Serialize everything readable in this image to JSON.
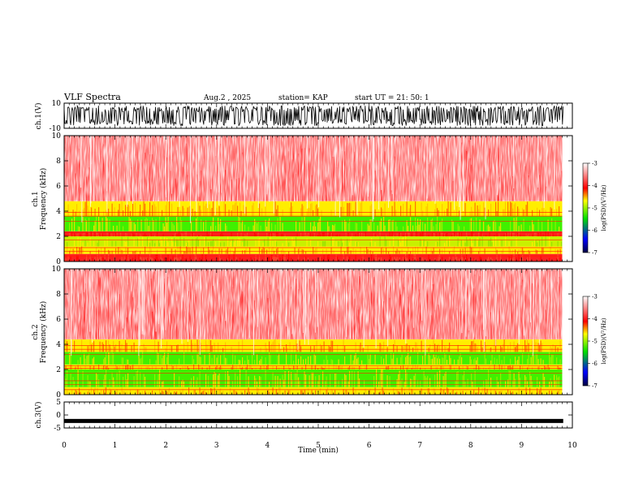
{
  "header": {
    "title": "VLF Spectra",
    "date": "Aug.2  , 2025",
    "station": "station= KAP",
    "start": "start  UT  =   21: 50: 1"
  },
  "chart_data": [
    {
      "type": "line",
      "name": "ch1-waveform",
      "ylabel": "ch.1(V)",
      "ylim": [
        -10,
        10
      ],
      "y_ticks": [
        "10",
        "-10"
      ],
      "xlim": [
        0,
        10
      ],
      "description_values": {
        "amplitude_range": [
          -8,
          8
        ]
      }
    },
    {
      "type": "heatmap",
      "name": "ch1-spectrogram",
      "ylabel": "ch.1\nFrequency  (kHz)",
      "ylabel_lines": [
        "ch.1",
        "Frequency  (kHz)"
      ],
      "ylim": [
        0,
        10
      ],
      "y_ticks": [
        "0",
        "2",
        "4",
        "6",
        "8",
        "10"
      ],
      "xlim": [
        0,
        9.8
      ],
      "bands_khz": [
        {
          "from": 0.0,
          "to": 0.6,
          "level": "red"
        },
        {
          "from": 0.6,
          "to": 1.2,
          "level": "yellow"
        },
        {
          "from": 1.2,
          "to": 2.0,
          "level": "yellow-green"
        },
        {
          "from": 2.0,
          "to": 2.4,
          "level": "red"
        },
        {
          "from": 2.4,
          "to": 3.6,
          "level": "green"
        },
        {
          "from": 3.6,
          "to": 4.8,
          "level": "yellow"
        },
        {
          "from": 4.8,
          "to": 10.0,
          "level": "white-red"
        }
      ]
    },
    {
      "type": "heatmap",
      "name": "ch2-spectrogram",
      "ylabel_lines": [
        "ch.2",
        "Frequency  (kHz)"
      ],
      "ylim": [
        0,
        10
      ],
      "y_ticks": [
        "0",
        "2",
        "4",
        "6",
        "8",
        "10"
      ],
      "xlim": [
        0,
        9.8
      ],
      "bands_khz": [
        {
          "from": 0.0,
          "to": 0.6,
          "level": "yellow"
        },
        {
          "from": 0.6,
          "to": 2.0,
          "level": "green"
        },
        {
          "from": 2.0,
          "to": 2.4,
          "level": "yellow"
        },
        {
          "from": 2.4,
          "to": 3.4,
          "level": "green"
        },
        {
          "from": 3.4,
          "to": 4.4,
          "level": "yellow"
        },
        {
          "from": 4.4,
          "to": 10.0,
          "level": "white-red"
        }
      ]
    },
    {
      "type": "line",
      "name": "ch3-waveform",
      "ylabel": "ch.3(V)",
      "ylim": [
        -5,
        5
      ],
      "y_ticks": [
        "5",
        "0",
        "-5"
      ],
      "xlim": [
        0,
        10
      ],
      "xlabel": "Time  (min)",
      "x_ticks": [
        "0",
        "1",
        "2",
        "3",
        "4",
        "5",
        "6",
        "7",
        "8",
        "9",
        "10"
      ],
      "description_values": {
        "level": -2.3
      }
    }
  ],
  "colorbar": {
    "label": "log(PSD)(V²/Hz)",
    "ticks": [
      "-3",
      "-4",
      "-5",
      "-6",
      "-7"
    ],
    "range": [
      -7,
      -3
    ],
    "colors": [
      "#000050",
      "#0000ff",
      "#00e000",
      "#ffff00",
      "#ff0000",
      "#ffffff"
    ]
  }
}
